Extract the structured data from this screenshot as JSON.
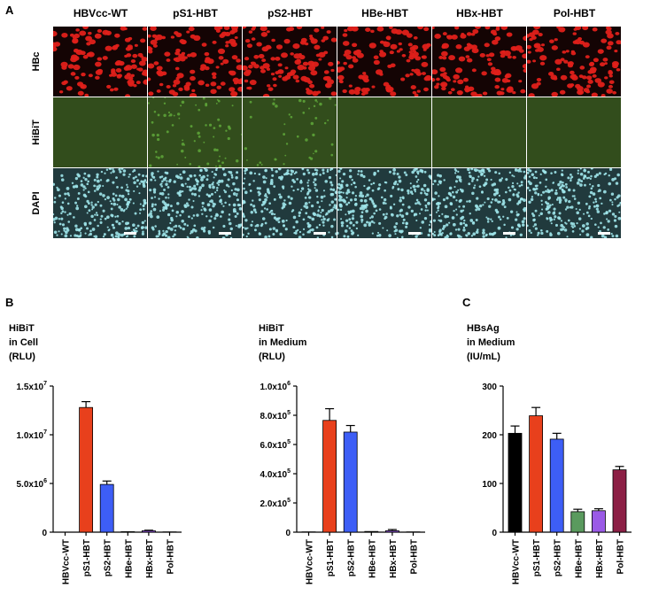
{
  "panels": {
    "a": "A",
    "b": "B",
    "c": "C"
  },
  "microscopy": {
    "columns": [
      "HBVcc-WT",
      "pS1-HBT",
      "pS2-HBT",
      "HBe-HBT",
      "HBx-HBT",
      "Pol-HBT"
    ],
    "rows": [
      "HBc",
      "HiBiT",
      "DAPI"
    ],
    "row_colors": {
      "HBc": "#e0201a",
      "HiBiT": "#5fa83a",
      "DAPI": "#9fe6ea"
    },
    "row_backgrounds": {
      "HBc": "#140404",
      "HiBiT": "#324d1c",
      "DAPI": "#213a3d"
    },
    "hibit_signal_level": [
      0.0,
      1.0,
      0.6,
      0.0,
      0.0,
      0.0
    ],
    "scale_bar_color": "#ffffff"
  },
  "chart_data": [
    {
      "type": "bar",
      "title": "HiBiT",
      "ylabel_lines": [
        "HiBiT",
        "in Cell",
        "(RLU)"
      ],
      "categories": [
        "HBVcc-WT",
        "pS1-HBT",
        "pS2-HBT",
        "HBe-HBT",
        "HBx-HBT",
        "Pol-HBT"
      ],
      "values": [
        0,
        12800000,
        4900000,
        50000,
        150000,
        30000
      ],
      "errors": [
        0,
        600000,
        350000,
        0,
        50000,
        0
      ],
      "colors": [
        "#000000",
        "#e8401c",
        "#3d5ef6",
        "#5a9a5e",
        "#9a5ae6",
        "#8c1f45"
      ],
      "ylim": [
        0,
        15000000
      ],
      "yticks": [
        0,
        5000000,
        10000000,
        15000000
      ],
      "ytick_labels": [
        {
          "base": "0",
          "exp": ""
        },
        {
          "base": "5.0x10",
          "exp": "6"
        },
        {
          "base": "1.0x10",
          "exp": "7"
        },
        {
          "base": "1.5x10",
          "exp": "7"
        }
      ]
    },
    {
      "type": "bar",
      "title": "HiBiT",
      "ylabel_lines": [
        "HiBiT",
        "in Medium",
        "(RLU)"
      ],
      "categories": [
        "HBVcc-WT",
        "pS1-HBT",
        "pS2-HBT",
        "HBe-HBT",
        "HBx-HBT",
        "Pol-HBT"
      ],
      "values": [
        2000,
        765000,
        685000,
        5000,
        10000,
        2000
      ],
      "errors": [
        0,
        80000,
        45000,
        0,
        8000,
        0
      ],
      "colors": [
        "#000000",
        "#e8401c",
        "#3d5ef6",
        "#5a9a5e",
        "#9a5ae6",
        "#8c1f45"
      ],
      "ylim": [
        0,
        1000000
      ],
      "yticks": [
        0,
        200000,
        400000,
        600000,
        800000,
        1000000
      ],
      "ytick_labels": [
        {
          "base": "0",
          "exp": ""
        },
        {
          "base": "2.0x10",
          "exp": "5"
        },
        {
          "base": "4.0x10",
          "exp": "5"
        },
        {
          "base": "6.0x10",
          "exp": "5"
        },
        {
          "base": "8.0x10",
          "exp": "5"
        },
        {
          "base": "1.0x10",
          "exp": "6"
        }
      ]
    },
    {
      "type": "bar",
      "title": "HBsAg",
      "ylabel_lines": [
        "HBsAg",
        "in Medium",
        "(IU/mL)"
      ],
      "categories": [
        "HBVcc-WT",
        "pS1-HBT",
        "pS2-HBT",
        "HBe-HBT",
        "HBx-HBT",
        "Pol-HBT"
      ],
      "values": [
        203,
        239,
        191,
        42,
        44,
        128
      ],
      "errors": [
        15,
        17,
        12,
        5,
        4,
        7
      ],
      "colors": [
        "#000000",
        "#e8401c",
        "#3d5ef6",
        "#5a9a5e",
        "#9a5ae6",
        "#8c1f45"
      ],
      "ylim": [
        0,
        300
      ],
      "yticks": [
        0,
        100,
        200,
        300
      ],
      "ytick_labels": [
        {
          "base": "0",
          "exp": ""
        },
        {
          "base": "100",
          "exp": ""
        },
        {
          "base": "200",
          "exp": ""
        },
        {
          "base": "300",
          "exp": ""
        }
      ]
    }
  ]
}
